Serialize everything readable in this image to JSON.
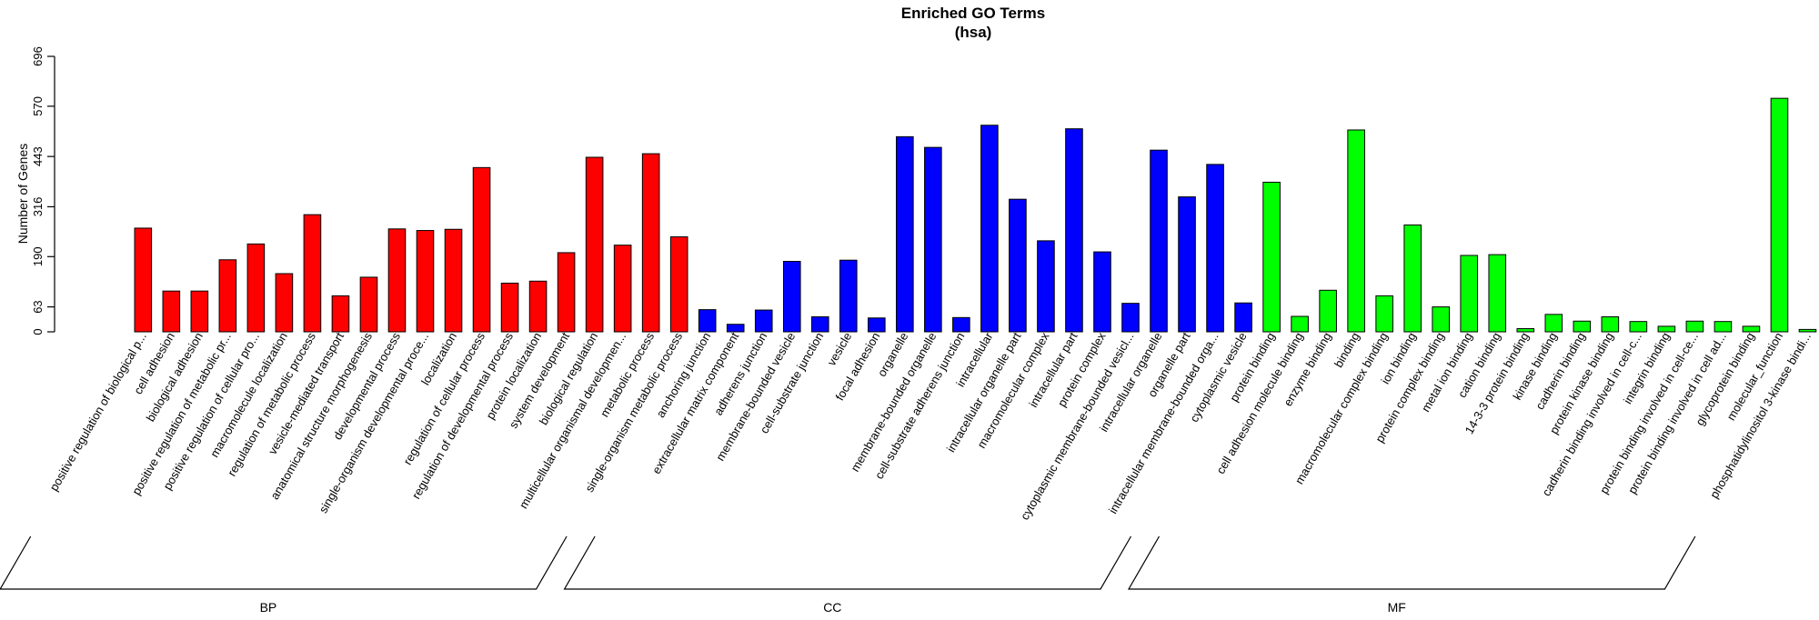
{
  "chart_data": {
    "type": "bar",
    "title": "Enriched GO Terms",
    "subtitle": "(hsa)",
    "xlabel": "",
    "ylabel": "Number of Genes",
    "ylim": [
      0,
      696
    ],
    "yticks": [
      0,
      63,
      190,
      316,
      443,
      570,
      696
    ],
    "groups": [
      {
        "name": "BP",
        "color": "#ff0000"
      },
      {
        "name": "CC",
        "color": "#0000ff"
      },
      {
        "name": "MF",
        "color": "#00ff00"
      }
    ],
    "categories": [
      {
        "label": "positive regulation of biological p...",
        "value": 262,
        "group": "BP"
      },
      {
        "label": "cell adhesion",
        "value": 103,
        "group": "BP"
      },
      {
        "label": "biological adhesion",
        "value": 103,
        "group": "BP"
      },
      {
        "label": "positive regulation of metabolic pr...",
        "value": 182,
        "group": "BP"
      },
      {
        "label": "positive regulation of cellular pro...",
        "value": 222,
        "group": "BP"
      },
      {
        "label": "macromolecule localization",
        "value": 147,
        "group": "BP"
      },
      {
        "label": "regulation of metabolic process",
        "value": 296,
        "group": "BP"
      },
      {
        "label": "vesicle-mediated transport",
        "value": 91,
        "group": "BP"
      },
      {
        "label": "anatomical structure morphogenesis",
        "value": 138,
        "group": "BP"
      },
      {
        "label": "developmental process",
        "value": 260,
        "group": "BP"
      },
      {
        "label": "single-organism developmental proce...",
        "value": 256,
        "group": "BP"
      },
      {
        "label": "localization",
        "value": 259,
        "group": "BP"
      },
      {
        "label": "regulation of cellular process",
        "value": 415,
        "group": "BP"
      },
      {
        "label": "regulation of developmental process",
        "value": 123,
        "group": "BP"
      },
      {
        "label": "protein localization",
        "value": 128,
        "group": "BP"
      },
      {
        "label": "system development",
        "value": 200,
        "group": "BP"
      },
      {
        "label": "biological regulation",
        "value": 441,
        "group": "BP"
      },
      {
        "label": "multicellular organismal developmen...",
        "value": 219,
        "group": "BP"
      },
      {
        "label": "metabolic process",
        "value": 450,
        "group": "BP"
      },
      {
        "label": "single-organism metabolic process",
        "value": 240,
        "group": "BP"
      },
      {
        "label": "anchoring junction",
        "value": 56,
        "group": "CC"
      },
      {
        "label": "extracellular matrix component",
        "value": 19,
        "group": "CC"
      },
      {
        "label": "adherens junction",
        "value": 55,
        "group": "CC"
      },
      {
        "label": "membrane-bounded vesicle",
        "value": 178,
        "group": "CC"
      },
      {
        "label": "cell-substrate junction",
        "value": 38,
        "group": "CC"
      },
      {
        "label": "vesicle",
        "value": 181,
        "group": "CC"
      },
      {
        "label": "focal adhesion",
        "value": 35,
        "group": "CC"
      },
      {
        "label": "organelle",
        "value": 493,
        "group": "CC"
      },
      {
        "label": "membrane-bounded organelle",
        "value": 466,
        "group": "CC"
      },
      {
        "label": "cell-substrate adherens junction",
        "value": 36,
        "group": "CC"
      },
      {
        "label": "intracellular",
        "value": 522,
        "group": "CC"
      },
      {
        "label": "intracellular organelle part",
        "value": 335,
        "group": "CC"
      },
      {
        "label": "macromolecular complex",
        "value": 230,
        "group": "CC"
      },
      {
        "label": "intracellular part",
        "value": 513,
        "group": "CC"
      },
      {
        "label": "protein complex",
        "value": 202,
        "group": "CC"
      },
      {
        "label": "cytoplasmic membrane-bounded vesicl...",
        "value": 72,
        "group": "CC"
      },
      {
        "label": "intracellular organelle",
        "value": 459,
        "group": "CC"
      },
      {
        "label": "organelle part",
        "value": 341,
        "group": "CC"
      },
      {
        "label": "intracellular membrane-bounded orga...",
        "value": 423,
        "group": "CC"
      },
      {
        "label": "cytoplasmic vesicle",
        "value": 73,
        "group": "CC"
      },
      {
        "label": "protein binding",
        "value": 378,
        "group": "MF"
      },
      {
        "label": "cell adhesion molecule binding",
        "value": 39,
        "group": "MF"
      },
      {
        "label": "enzyme binding",
        "value": 105,
        "group": "MF"
      },
      {
        "label": "binding",
        "value": 510,
        "group": "MF"
      },
      {
        "label": "macromolecular complex binding",
        "value": 91,
        "group": "MF"
      },
      {
        "label": "ion binding",
        "value": 270,
        "group": "MF"
      },
      {
        "label": "protein complex binding",
        "value": 63,
        "group": "MF"
      },
      {
        "label": "metal ion binding",
        "value": 193,
        "group": "MF"
      },
      {
        "label": "cation binding",
        "value": 195,
        "group": "MF"
      },
      {
        "label": "14-3-3 protein binding",
        "value": 8,
        "group": "MF"
      },
      {
        "label": "kinase binding",
        "value": 44,
        "group": "MF"
      },
      {
        "label": "cadherin binding",
        "value": 27,
        "group": "MF"
      },
      {
        "label": "protein kinase binding",
        "value": 38,
        "group": "MF"
      },
      {
        "label": "cadherin binding involved in cell-c...",
        "value": 26,
        "group": "MF"
      },
      {
        "label": "integrin binding",
        "value": 14,
        "group": "MF"
      },
      {
        "label": "protein binding involved in cell-ce...",
        "value": 27,
        "group": "MF"
      },
      {
        "label": "protein binding involved in cell ad...",
        "value": 26,
        "group": "MF"
      },
      {
        "label": "glycoprotein binding",
        "value": 14,
        "group": "MF"
      },
      {
        "label": "molecular_function",
        "value": 590,
        "group": "MF"
      },
      {
        "label": "phosphatidylinositol 3-kinase bindi...",
        "value": 6,
        "group": "MF"
      }
    ]
  }
}
